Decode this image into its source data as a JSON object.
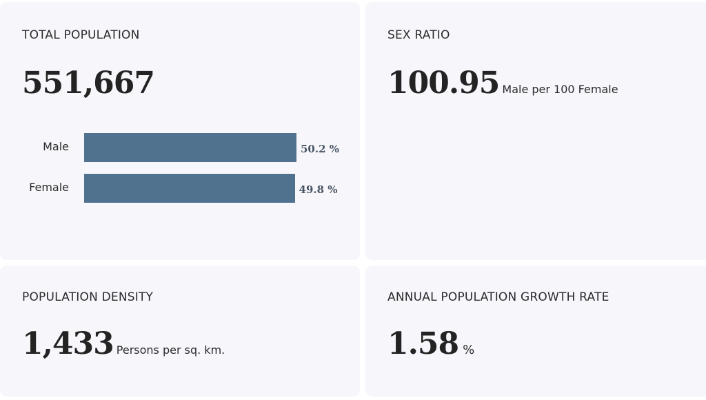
{
  "cards": {
    "total_population": {
      "title": "TOTAL POPULATION",
      "value": "551,667"
    },
    "sex_ratio": {
      "title": "SEX RATIO",
      "value": "100.95",
      "unit": "Male per 100 Female"
    },
    "population_density": {
      "title": "POPULATION DENSITY",
      "value": "1,433",
      "unit": "Persons per sq. km."
    },
    "growth_rate": {
      "title": "ANNUAL POPULATION GROWTH RATE",
      "value": "1.58",
      "unit": "%"
    }
  },
  "chart_data": {
    "type": "bar",
    "orientation": "horizontal",
    "categories": [
      "Male",
      "Female"
    ],
    "values": [
      50.2,
      49.8
    ],
    "value_labels": [
      "50.2 %",
      "49.8 %"
    ],
    "color": "#50728e"
  }
}
